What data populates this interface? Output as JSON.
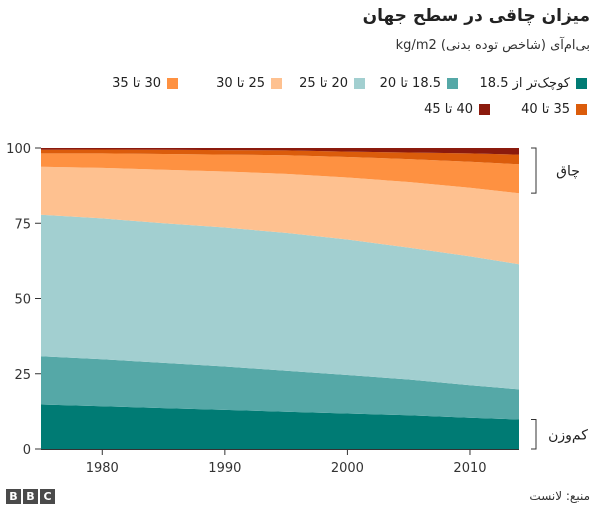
{
  "chart_data": {
    "type": "area",
    "stacked": true,
    "title": "میزان چاقی در سطح جهان",
    "subtitle": "بی‌ام‌آی (شاخص توده بدنی) kg/m2",
    "x": [
      1975,
      1980,
      1985,
      1990,
      1995,
      2000,
      2005,
      2010,
      2014
    ],
    "xticks": [
      1980,
      1990,
      2000,
      2010
    ],
    "ylim": [
      0,
      100
    ],
    "yticks": [
      0,
      25,
      50,
      75,
      100
    ],
    "grid": false,
    "legend_position": "top",
    "series": [
      {
        "name": "کوچک‌تر از 18.5",
        "color": "#007b74",
        "values": [
          14.8,
          14.2,
          13.6,
          13.0,
          12.4,
          11.8,
          11.2,
          10.4,
          9.8
        ]
      },
      {
        "name": "18.5 تا 20",
        "color": "#55a8a7",
        "values": [
          16.0,
          15.6,
          15.0,
          14.4,
          13.6,
          12.8,
          11.9,
          10.8,
          10.0
        ]
      },
      {
        "name": "20 تا 25",
        "color": "#a2cfd0",
        "values": [
          47.0,
          46.8,
          46.4,
          46.2,
          45.8,
          45.0,
          43.8,
          42.8,
          41.6
        ]
      },
      {
        "name": "25 تا 30",
        "color": "#fec190",
        "values": [
          16.0,
          16.8,
          17.8,
          18.6,
          19.6,
          20.6,
          21.8,
          22.8,
          23.6
        ]
      },
      {
        "name": "30 تا 35",
        "color": "#fe9141",
        "values": [
          4.4,
          4.8,
          5.2,
          5.6,
          6.2,
          6.8,
          7.6,
          8.6,
          9.6
        ]
      },
      {
        "name": "35 تا 40",
        "color": "#db5c0b",
        "values": [
          1.2,
          1.3,
          1.4,
          1.5,
          1.6,
          1.8,
          2.2,
          2.8,
          3.2
        ]
      },
      {
        "name": "40 تا 45",
        "color": "#8b1a0d",
        "values": [
          0.6,
          0.5,
          0.6,
          0.7,
          0.8,
          1.2,
          1.5,
          1.8,
          2.2
        ]
      }
    ],
    "annotations": [
      {
        "label": "چاق",
        "y_range": [
          85,
          100
        ]
      },
      {
        "label": "کم‌وزن",
        "y_range": [
          0,
          9.8
        ]
      }
    ]
  },
  "footer": {
    "logo": [
      "B",
      "B",
      "C"
    ],
    "source": "منبع: لانست"
  }
}
